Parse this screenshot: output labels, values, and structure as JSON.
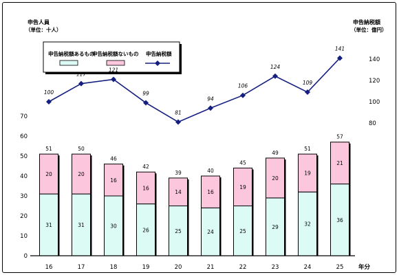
{
  "chart_data": {
    "type": "bar",
    "stacked": true,
    "categories": [
      "16",
      "17",
      "18",
      "19",
      "20",
      "21",
      "22",
      "23",
      "24",
      "25"
    ],
    "x_unit_label": "年分",
    "series": [
      {
        "name": "申告納税額あるもの",
        "values": [
          31,
          31,
          30,
          26,
          25,
          24,
          25,
          29,
          32,
          36
        ],
        "color": "#ddfbf5"
      },
      {
        "name": "申告納税額ないもの",
        "values": [
          20,
          20,
          16,
          16,
          14,
          16,
          19,
          20,
          19,
          21
        ],
        "color": "#fcc6dd"
      }
    ],
    "bar_totals": [
      51,
      50,
      46,
      42,
      39,
      40,
      45,
      49,
      51,
      57
    ],
    "line_series": {
      "name": "申告納税額",
      "values": [
        100,
        117,
        121,
        99,
        81,
        94,
        106,
        124,
        109,
        141
      ],
      "color": "#141f7f"
    },
    "left_axis": {
      "title": "申告人員",
      "unit": "（単位：十人）",
      "ylim": [
        0,
        70
      ],
      "ticks": [
        0,
        10,
        20,
        30,
        40,
        50,
        60,
        70
      ]
    },
    "right_axis": {
      "title": "申告納税額",
      "unit": "（単位：億円）",
      "ylim": [
        80,
        140
      ],
      "ticks": [
        80,
        100,
        120,
        140
      ],
      "minor_ticks": [
        80,
        100,
        110,
        120,
        140
      ]
    },
    "legend": {
      "position": "top-left"
    },
    "grid": false
  }
}
